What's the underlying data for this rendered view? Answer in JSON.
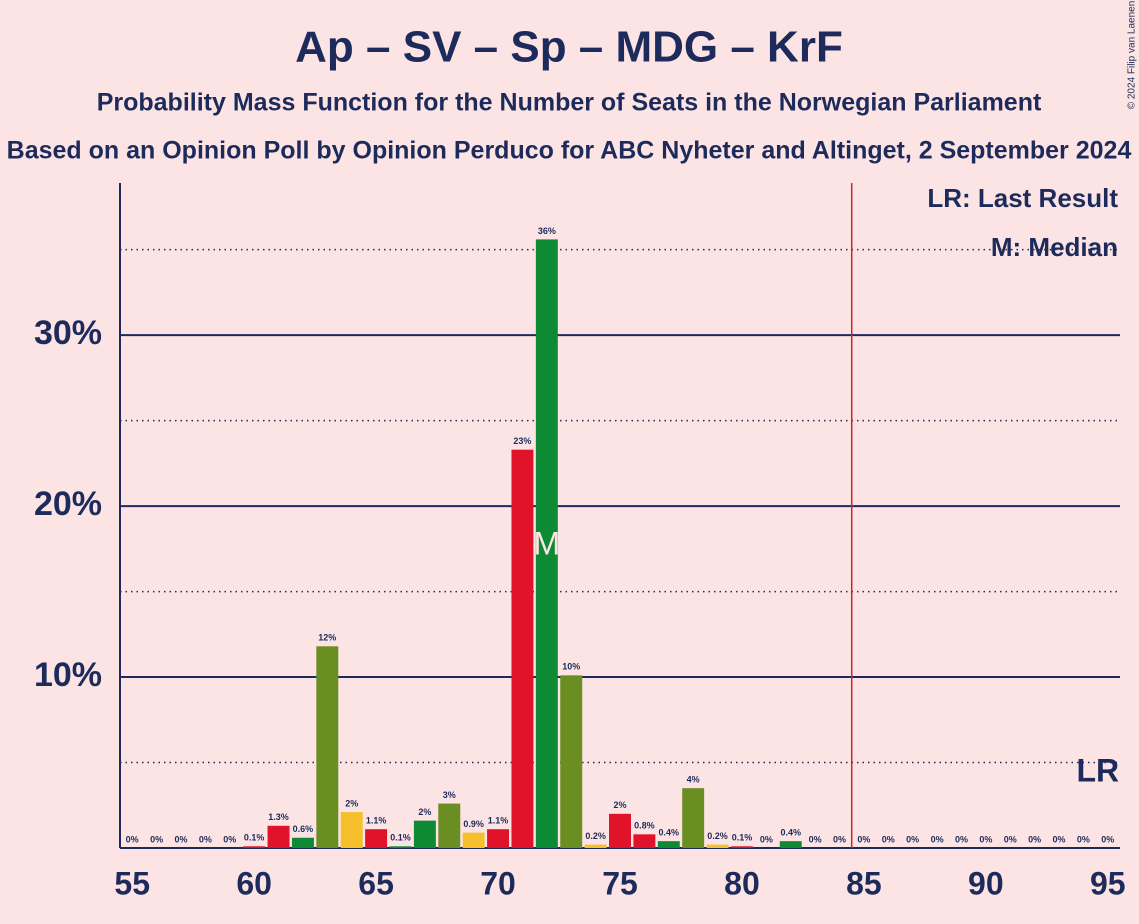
{
  "chart_data": {
    "type": "bar",
    "title": "Ap – SV – Sp – MDG – KrF",
    "subtitle": "Probability Mass Function for the Number of Seats in the Norwegian Parliament",
    "subtitle2": "Based on an Opinion Poll by Opinion Perduco for ABC Nyheter and Altinget, 2 September 2024",
    "copyright": "© 2024 Filip van Laenen",
    "x": [
      55,
      56,
      57,
      58,
      59,
      60,
      61,
      62,
      63,
      64,
      65,
      66,
      67,
      68,
      69,
      70,
      71,
      72,
      73,
      74,
      75,
      76,
      77,
      78,
      79,
      80,
      81,
      82,
      83,
      84,
      85,
      86,
      87,
      88,
      89,
      90,
      91,
      92,
      93,
      94,
      95
    ],
    "values": [
      0,
      0,
      0,
      0,
      0,
      0.1,
      1.3,
      0.6,
      11.8,
      2.1,
      1.1,
      0.1,
      1.6,
      2.6,
      0.9,
      1.1,
      23.3,
      35.6,
      10.1,
      0.2,
      2.0,
      0.8,
      0.4,
      3.5,
      0.2,
      0.1,
      0,
      0.4,
      0,
      0,
      0,
      0,
      0,
      0,
      0,
      0,
      0,
      0,
      0,
      0,
      0
    ],
    "value_labels": [
      "0%",
      "0%",
      "0%",
      "0%",
      "0%",
      "0.1%",
      "1.3%",
      "0.6%",
      "12%",
      "2%",
      "1.1%",
      "0.1%",
      "2%",
      "3%",
      "0.9%",
      "1.1%",
      "23%",
      "36%",
      "10%",
      "0.2%",
      "2%",
      "0.8%",
      "0.4%",
      "4%",
      "0.2%",
      "0.1%",
      "0%",
      "0.4%",
      "0%",
      "0%",
      "0%",
      "0%",
      "0%",
      "0%",
      "0%",
      "0%",
      "0%",
      "0%",
      "0%",
      "0%",
      "0%"
    ],
    "colors": [
      "#e1132a",
      "#0e8a34",
      "#6b8e23",
      "#f5c02b",
      "#e1132a",
      "#e1132a",
      "#e1132a",
      "#0e8a34",
      "#6b8e23",
      "#f5c02b",
      "#e1132a",
      "#0e8a34",
      "#0e8a34",
      "#6b8e23",
      "#f5c02b",
      "#e1132a",
      "#e1132a",
      "#0e8a34",
      "#6b8e23",
      "#f5c02b",
      "#e1132a",
      "#e1132a",
      "#0e8a34",
      "#6b8e23",
      "#f5c02b",
      "#e1132a",
      "#0e8a34",
      "#0e8a34",
      "#6b8e23",
      "#f5c02b",
      "#e1132a",
      "#e1132a",
      "#e1132a",
      "#e1132a",
      "#e1132a",
      "#e1132a",
      "#e1132a",
      "#e1132a",
      "#e1132a",
      "#e1132a",
      "#e1132a"
    ],
    "xlim": [
      54.5,
      95.5
    ],
    "xticks": [
      55,
      60,
      65,
      70,
      75,
      80,
      85,
      90,
      95
    ],
    "ylim": [
      0,
      38.9
    ],
    "yticks": [
      {
        "value": 10,
        "label": "10%"
      },
      {
        "value": 20,
        "label": "20%"
      },
      {
        "value": 30,
        "label": "30%"
      }
    ],
    "minor_yticks": [
      5,
      15,
      25,
      35
    ],
    "majority_line_x": 84.5,
    "median": 72,
    "median_label": "M",
    "last_result": 95,
    "last_result_label": "LR",
    "legend": [
      "LR: Last Result",
      "M: Median"
    ]
  }
}
